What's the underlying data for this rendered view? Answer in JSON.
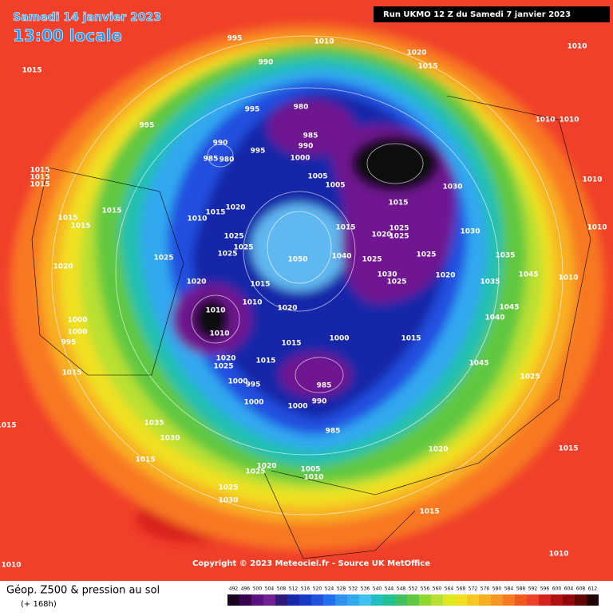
{
  "header": {
    "date": "Samedi 14 janvier 2023",
    "time": "13:00 locale",
    "run": "Run UKMO 12 Z du Samedi 7 janvier 2023"
  },
  "footer": {
    "title": "Géop. Z500 & pression au sol",
    "subtitle": "(+ 168h)",
    "copyright": "Copyright © 2023 Meteociel.fr - Source UK MetOffice"
  },
  "colorbar": {
    "ticks": [
      492,
      496,
      500,
      504,
      508,
      512,
      516,
      520,
      524,
      528,
      532,
      536,
      540,
      544,
      548,
      552,
      556,
      560,
      564,
      568,
      572,
      576,
      580,
      584,
      588,
      592,
      596,
      600,
      604,
      608,
      612
    ]
  },
  "pressure_labels": [
    "995",
    "1010",
    "1020",
    "1015",
    "1015",
    "990",
    "1010",
    "980",
    "995",
    "995",
    "985",
    "990",
    "990",
    "985",
    "980",
    "995",
    "1000",
    "1005",
    "1005",
    "1030",
    "1015",
    "1015",
    "1015",
    "1010",
    "1010",
    "1010",
    "1015",
    "1020",
    "1015",
    "1010",
    "1015",
    "1015",
    "1015",
    "1015",
    "1025",
    "1020",
    "1025",
    "1030",
    "1010",
    "1025",
    "1025",
    "1025",
    "1025",
    "1050",
    "1040",
    "1025",
    "1025",
    "1035",
    "1020",
    "1020",
    "1015",
    "1025",
    "1030",
    "1020",
    "1045",
    "1010",
    "1035",
    "1010",
    "1010",
    "1020",
    "1045",
    "1040",
    "1000",
    "1000",
    "995",
    "1010",
    "1000",
    "1015",
    "1015",
    "1020",
    "1025",
    "1015",
    "1045",
    "1015",
    "1025",
    "1000",
    "995",
    "985",
    "990",
    "1000",
    "1000",
    "985",
    "1035",
    "1030",
    "1020",
    "1015",
    "1015",
    "1020",
    "1025",
    "1005",
    "1010",
    "1025",
    "1030",
    "1015",
    "1010",
    "1010",
    "1015"
  ]
}
